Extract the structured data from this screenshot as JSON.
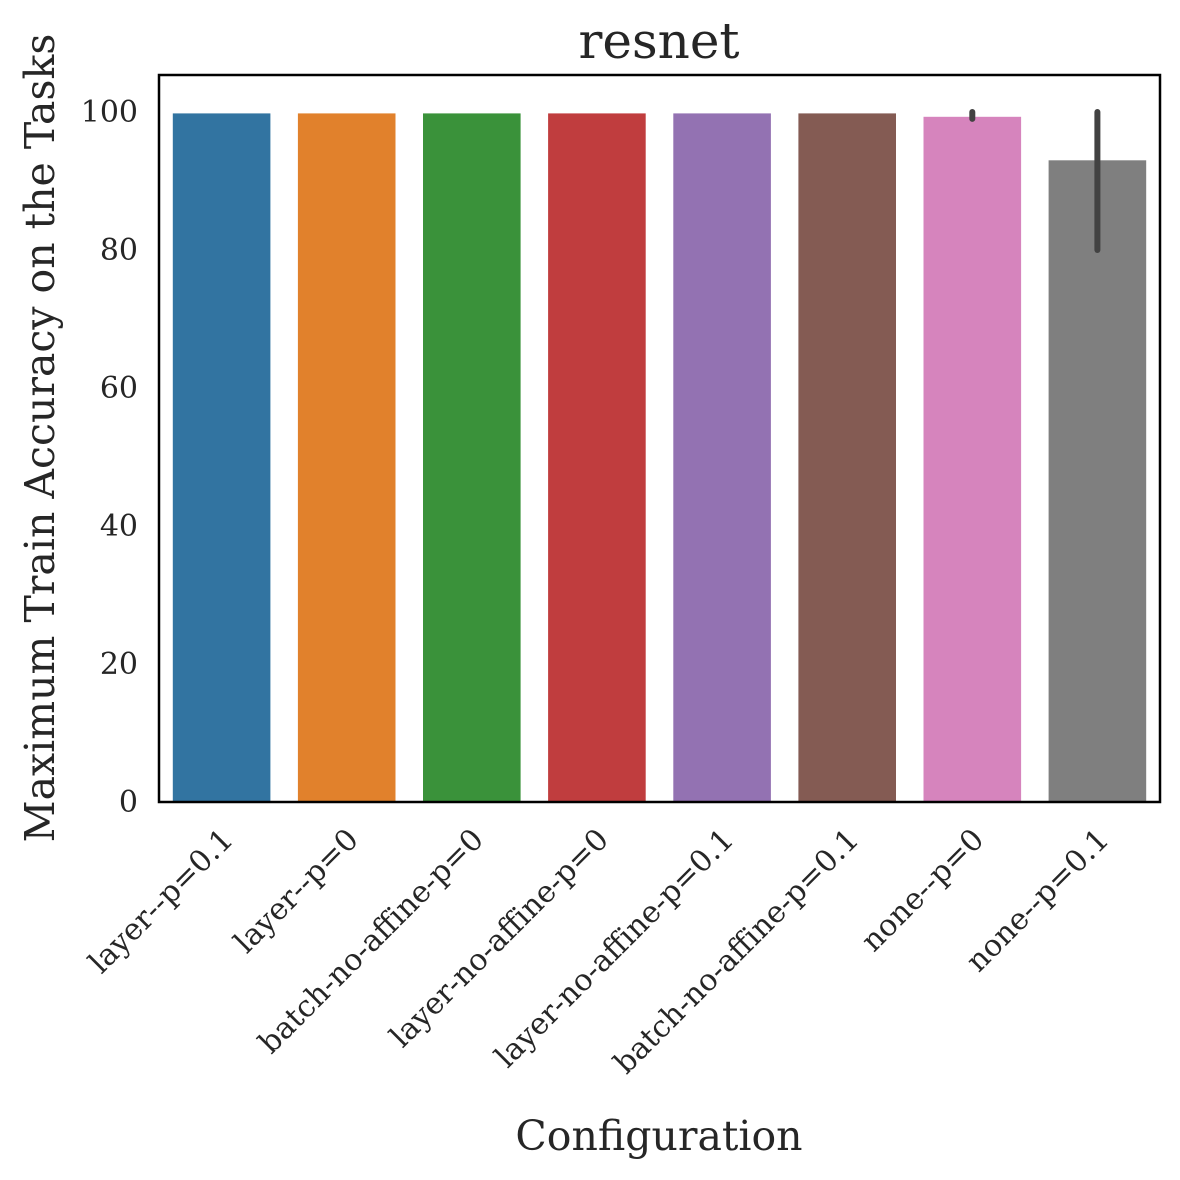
{
  "chart_data": {
    "type": "bar",
    "title": "resnet",
    "xlabel": "Configuration",
    "ylabel": "Maximum Train Accuracy on the Tasks",
    "categories": [
      "layer--p=0.1",
      "layer--p=0",
      "batch-no-affine-p=0",
      "layer-no-affine-p=0",
      "layer-no-affine-p=0.1",
      "batch-no-affine-p=0.1",
      "none--p=0",
      "none--p=0.1"
    ],
    "values": [
      99.8,
      99.8,
      99.8,
      99.8,
      99.8,
      99.8,
      99.3,
      93.0
    ],
    "error_bars": [
      null,
      null,
      null,
      null,
      null,
      null,
      [
        99.0,
        100.0
      ],
      [
        80.0,
        100.0
      ]
    ],
    "colors": [
      "#3274a1",
      "#e1812c",
      "#3a923a",
      "#c03d3e",
      "#9372b2",
      "#845b53",
      "#d684bd",
      "#7f7f7f"
    ],
    "ylim": [
      0,
      105
    ],
    "yticks": [
      0,
      20,
      40,
      60,
      80,
      100
    ],
    "grid": false
  }
}
